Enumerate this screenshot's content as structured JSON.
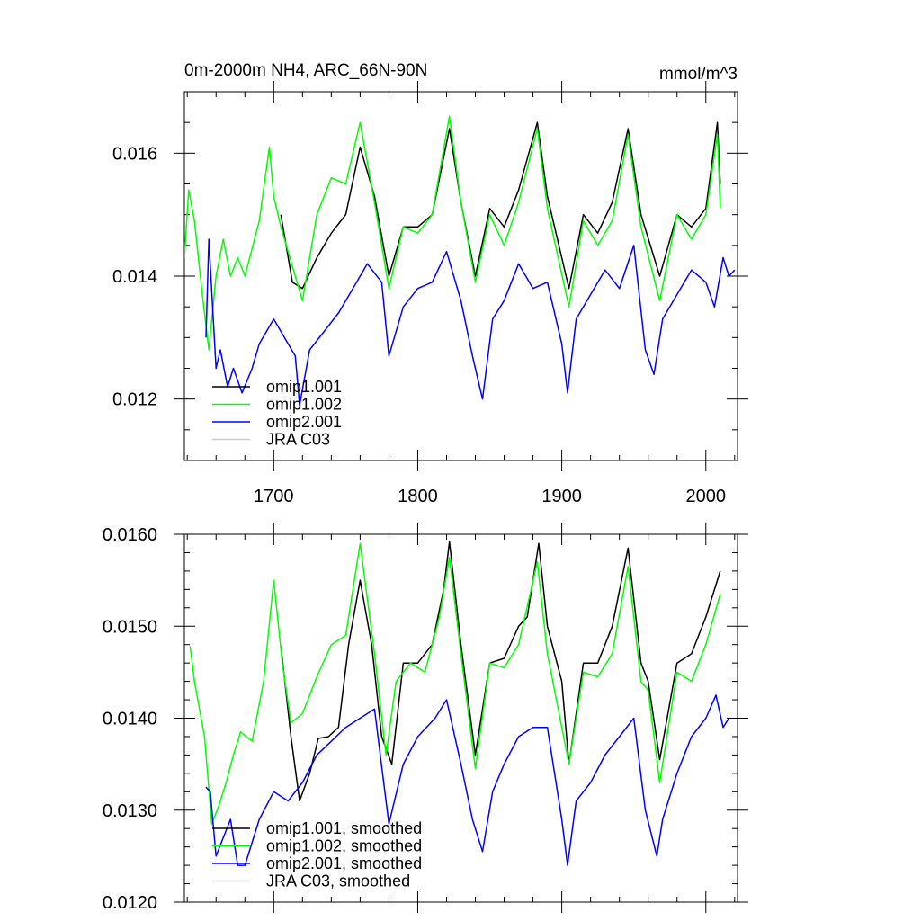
{
  "chart_data": [
    {
      "type": "line",
      "title": "0m-2000m NH4, ARC_66N-90N",
      "units": "mmol/m^3",
      "xlim": [
        1638,
        2022
      ],
      "ylim": [
        0.011,
        0.017
      ],
      "x_ticks": [
        1700,
        1800,
        1900,
        2000
      ],
      "y_ticks": [
        "0.012",
        "0.014",
        "0.016"
      ],
      "y_tick_values": [
        0.012,
        0.014,
        0.016
      ],
      "legend": [
        "omip1.001",
        "omip1.002",
        "omip2.001",
        "JRA C03"
      ],
      "series": [
        {
          "name": "omip1.001",
          "color": "#000000",
          "x": [
            1705,
            1713,
            1720,
            1730,
            1740,
            1750,
            1760,
            1770,
            1780,
            1790,
            1800,
            1810,
            1822,
            1830,
            1840,
            1850,
            1860,
            1870,
            1883,
            1890,
            1905,
            1915,
            1925,
            1935,
            1946,
            1955,
            1968,
            1980,
            1990,
            2000,
            2008,
            2010
          ],
          "y": [
            0.015,
            0.0139,
            0.0138,
            0.0143,
            0.0147,
            0.015,
            0.0161,
            0.0153,
            0.014,
            0.0148,
            0.0148,
            0.015,
            0.0164,
            0.0152,
            0.014,
            0.0151,
            0.0148,
            0.0154,
            0.0165,
            0.0153,
            0.0138,
            0.015,
            0.0147,
            0.0152,
            0.0164,
            0.015,
            0.014,
            0.015,
            0.0148,
            0.0151,
            0.0165,
            0.0155
          ]
        },
        {
          "name": "omip1.002",
          "color": "#00ff00",
          "x": [
            1638,
            1641,
            1645,
            1650,
            1655,
            1660,
            1665,
            1670,
            1675,
            1680,
            1690,
            1697,
            1700,
            1705,
            1715,
            1720,
            1730,
            1740,
            1750,
            1760,
            1770,
            1780,
            1790,
            1800,
            1810,
            1822,
            1830,
            1840,
            1850,
            1860,
            1870,
            1883,
            1890,
            1905,
            1915,
            1925,
            1935,
            1946,
            1955,
            1968,
            1980,
            1990,
            2000,
            2008,
            2010
          ],
          "y": [
            0.0143,
            0.0154,
            0.0149,
            0.0138,
            0.0128,
            0.014,
            0.0146,
            0.014,
            0.0143,
            0.014,
            0.0149,
            0.0161,
            0.0153,
            0.0148,
            0.014,
            0.0136,
            0.015,
            0.0156,
            0.0155,
            0.0165,
            0.0152,
            0.0138,
            0.0148,
            0.0147,
            0.015,
            0.0166,
            0.0152,
            0.0139,
            0.015,
            0.0145,
            0.0152,
            0.0164,
            0.0151,
            0.0135,
            0.0149,
            0.0145,
            0.0149,
            0.0163,
            0.0148,
            0.0136,
            0.015,
            0.0146,
            0.015,
            0.0163,
            0.0151
          ]
        },
        {
          "name": "omip2.001",
          "color": "#0000ff",
          "x": [
            1653,
            1655,
            1660,
            1663,
            1668,
            1672,
            1678,
            1685,
            1690,
            1700,
            1710,
            1715,
            1718,
            1725,
            1735,
            1745,
            1755,
            1765,
            1775,
            1780,
            1790,
            1800,
            1810,
            1820,
            1830,
            1838,
            1845,
            1852,
            1860,
            1870,
            1880,
            1890,
            1900,
            1904,
            1910,
            1920,
            1930,
            1940,
            1950,
            1958,
            1964,
            1970,
            1980,
            1990,
            2000,
            2006,
            2012,
            2016,
            2020
          ],
          "y": [
            0.013,
            0.0146,
            0.0125,
            0.0128,
            0.0122,
            0.0125,
            0.0121,
            0.0125,
            0.0129,
            0.0133,
            0.0129,
            0.0127,
            0.0119,
            0.0128,
            0.0131,
            0.0134,
            0.0138,
            0.0142,
            0.0139,
            0.0127,
            0.0135,
            0.0138,
            0.0139,
            0.0144,
            0.0136,
            0.0127,
            0.012,
            0.0133,
            0.0136,
            0.0142,
            0.0138,
            0.0139,
            0.0129,
            0.0121,
            0.0133,
            0.0137,
            0.0141,
            0.0138,
            0.0145,
            0.0128,
            0.0124,
            0.0133,
            0.0137,
            0.0141,
            0.0139,
            0.0135,
            0.0143,
            0.014,
            0.0141
          ]
        },
        {
          "name": "JRA C03",
          "color": "#cccccc",
          "x": [],
          "y": []
        }
      ]
    },
    {
      "type": "line",
      "title": "",
      "xlim": [
        1638,
        2022
      ],
      "ylim": [
        0.012,
        0.016
      ],
      "x_ticks": [
        1700,
        1800,
        1900,
        2000
      ],
      "y_ticks": [
        "0.0120",
        "0.0130",
        "0.0140",
        "0.0150",
        "0.0160"
      ],
      "y_tick_values": [
        0.012,
        0.013,
        0.014,
        0.015,
        0.016
      ],
      "legend": [
        "omip1.001, smoothed",
        "omip1.002, smoothed",
        "omip2.001, smoothed",
        "JRA C03, smoothed"
      ],
      "series": [
        {
          "name": "omip1.001, smoothed",
          "color": "#000000",
          "x": [
            1705,
            1712,
            1718,
            1725,
            1731,
            1738,
            1745,
            1752,
            1760,
            1768,
            1775,
            1782,
            1790,
            1800,
            1810,
            1818,
            1822,
            1830,
            1840,
            1850,
            1860,
            1870,
            1876,
            1884,
            1890,
            1900,
            1905,
            1915,
            1925,
            1935,
            1946,
            1955,
            1960,
            1968,
            1980,
            1990,
            2000,
            2010
          ],
          "y": [
            0.01478,
            0.0138,
            0.0131,
            0.0134,
            0.01378,
            0.0138,
            0.0139,
            0.0148,
            0.0155,
            0.0148,
            0.0138,
            0.0135,
            0.0146,
            0.0146,
            0.0148,
            0.0154,
            0.01592,
            0.0148,
            0.0136,
            0.0146,
            0.01465,
            0.015,
            0.0151,
            0.0159,
            0.015,
            0.0144,
            0.0135,
            0.0146,
            0.0146,
            0.015,
            0.01585,
            0.0146,
            0.0144,
            0.01355,
            0.0146,
            0.0147,
            0.0151,
            0.0156
          ]
        },
        {
          "name": "omip1.002, smoothed",
          "color": "#00ff00",
          "x": [
            1642,
            1645,
            1652,
            1657,
            1662,
            1667,
            1672,
            1677,
            1685,
            1693,
            1700,
            1706,
            1712,
            1720,
            1730,
            1740,
            1750,
            1760,
            1770,
            1778,
            1785,
            1795,
            1805,
            1815,
            1822,
            1830,
            1840,
            1850,
            1860,
            1870,
            1883,
            1890,
            1905,
            1915,
            1925,
            1935,
            1946,
            1955,
            1960,
            1968,
            1980,
            1990,
            2000,
            2010
          ],
          "y": [
            0.01478,
            0.0144,
            0.0138,
            0.01285,
            0.01305,
            0.0133,
            0.0136,
            0.01385,
            0.01375,
            0.0144,
            0.0155,
            0.0146,
            0.01395,
            0.01405,
            0.01445,
            0.0148,
            0.0149,
            0.0159,
            0.0147,
            0.0136,
            0.0144,
            0.0146,
            0.0145,
            0.0151,
            0.01575,
            0.0147,
            0.01345,
            0.0146,
            0.01455,
            0.0148,
            0.0157,
            0.0147,
            0.0135,
            0.0145,
            0.01445,
            0.0147,
            0.01565,
            0.0144,
            0.0143,
            0.0133,
            0.0145,
            0.0144,
            0.0148,
            0.01535
          ]
        },
        {
          "name": "omip2.001, smoothed",
          "color": "#0000ff",
          "x": [
            1653,
            1656,
            1660,
            1665,
            1670,
            1675,
            1680,
            1690,
            1700,
            1710,
            1720,
            1730,
            1740,
            1750,
            1760,
            1770,
            1780,
            1790,
            1800,
            1812,
            1820,
            1830,
            1838,
            1845,
            1852,
            1860,
            1870,
            1880,
            1890,
            1900,
            1904,
            1910,
            1920,
            1930,
            1940,
            1950,
            1958,
            1966,
            1970,
            1980,
            1990,
            2000,
            2007,
            2012,
            2016
          ],
          "y": [
            0.01325,
            0.0132,
            0.0125,
            0.0127,
            0.0129,
            0.0124,
            0.0124,
            0.0129,
            0.0132,
            0.0131,
            0.0133,
            0.0136,
            0.01375,
            0.0139,
            0.014,
            0.0141,
            0.01285,
            0.0135,
            0.0138,
            0.014,
            0.0142,
            0.0135,
            0.0129,
            0.01255,
            0.0132,
            0.0135,
            0.0138,
            0.0139,
            0.0139,
            0.0129,
            0.0124,
            0.0131,
            0.0133,
            0.0136,
            0.0138,
            0.014,
            0.013,
            0.0125,
            0.0129,
            0.0134,
            0.0138,
            0.014,
            0.01425,
            0.0139,
            0.014
          ]
        },
        {
          "name": "JRA C03, smoothed",
          "color": "#cccccc",
          "x": [],
          "y": []
        }
      ]
    }
  ]
}
